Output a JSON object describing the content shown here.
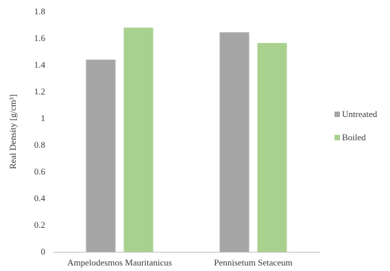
{
  "chart_data": {
    "type": "bar",
    "title": "",
    "xlabel": "",
    "ylabel": "Real Density [g/cm³]",
    "ylim": [
      0,
      1.8
    ],
    "yticks": [
      "0",
      "0.2",
      "0.4",
      "0.6",
      "0.8",
      "1",
      "1.2",
      "1.4",
      "1.6",
      "1.8"
    ],
    "categories": [
      "Ampelodesmos Mauritanicus",
      "Pennisetum Setaceum"
    ],
    "series": [
      {
        "name": "Untreated",
        "values": [
          1.44,
          1.645
        ],
        "color": "#a6a6a6"
      },
      {
        "name": "Boiled",
        "values": [
          1.68,
          1.565
        ],
        "color": "#a9d18e"
      }
    ],
    "grid": false,
    "legend": "right"
  }
}
